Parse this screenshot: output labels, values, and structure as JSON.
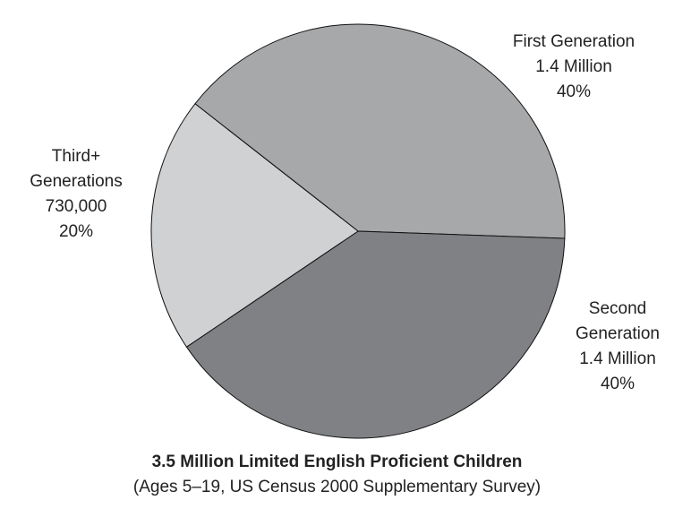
{
  "chart_data": {
    "type": "pie",
    "title": "3.5 Million Limited English Proficient Children",
    "subtitle": "(Ages 5–19, US Census 2000 Supplementary Survey)",
    "categories": [
      "First Generation",
      "Second Generation",
      "Third+ Generations"
    ],
    "amounts": [
      "1.4 Million",
      "1.4 Million",
      "730,000"
    ],
    "values": [
      40,
      40,
      20
    ],
    "value_labels": [
      "40%",
      "40%",
      "20%"
    ],
    "colors": [
      "#a7a8aa",
      "#808184",
      "#d0d1d3"
    ]
  }
}
